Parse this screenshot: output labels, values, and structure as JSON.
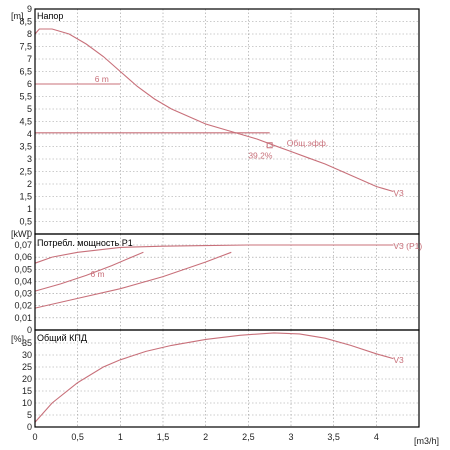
{
  "chart_data": [
    {
      "type": "line",
      "title": "Напор",
      "ylabel_unit": "[m]",
      "ylim": [
        0,
        9
      ],
      "yticks": [
        "0",
        "0,5",
        "1",
        "1,5",
        "2",
        "2,5",
        "3",
        "3,5",
        "4",
        "4,5",
        "5",
        "5,5",
        "6",
        "6,5",
        "7",
        "7,5",
        "8",
        "8,5",
        "9"
      ],
      "xlim": [
        0,
        4.5
      ],
      "grid": true,
      "series": [
        {
          "name": "V3",
          "x": [
            0,
            0.05,
            0.2,
            0.4,
            0.6,
            0.8,
            1.0,
            1.2,
            1.4,
            1.6,
            1.8,
            2.0,
            2.2,
            2.4,
            2.6,
            2.8,
            3.0,
            3.2,
            3.4,
            3.6,
            3.8,
            4.0,
            4.2
          ],
          "y": [
            8.0,
            8.2,
            8.2,
            8.0,
            7.6,
            7.1,
            6.5,
            5.9,
            5.4,
            5.0,
            4.7,
            4.4,
            4.2,
            4.0,
            3.8,
            3.55,
            3.3,
            3.05,
            2.8,
            2.5,
            2.2,
            1.9,
            1.7
          ]
        },
        {
          "name": "6 m",
          "x": [
            0,
            1.0
          ],
          "y": [
            6,
            6
          ]
        },
        {
          "name": "",
          "x": [
            0,
            2.75
          ],
          "y": [
            4.05,
            4.05
          ]
        }
      ],
      "annotations": [
        {
          "text": "6 m",
          "x": 0.7,
          "y": 6.2
        },
        {
          "text": "Общ.эфф.",
          "x": 2.95,
          "y": 3.65
        },
        {
          "text": "39,2%",
          "x": 2.5,
          "y": 3.15
        },
        {
          "text": "V3",
          "x": 4.2,
          "y": 1.65
        }
      ],
      "marker": {
        "x": 2.75,
        "y": 3.55
      }
    },
    {
      "type": "line",
      "title": "Потребл. мощность P1",
      "ylabel_unit": "[kW]",
      "ylim": [
        0,
        0.07
      ],
      "yticks": [
        "0",
        "0,01",
        "0,02",
        "0,03",
        "0,04",
        "0,05",
        "0,06",
        "0,07"
      ],
      "xlim": [
        0,
        4.5
      ],
      "grid": true,
      "series": [
        {
          "name": "V3 (P1)",
          "x": [
            0,
            0.2,
            0.5,
            1.0,
            1.5,
            2.0,
            2.5,
            3.0,
            3.5,
            4.0,
            4.2
          ],
          "y": [
            0.055,
            0.06,
            0.064,
            0.068,
            0.069,
            0.0695,
            0.07,
            0.07,
            0.07,
            0.07,
            0.07
          ]
        },
        {
          "name": "6 m",
          "x": [
            0,
            0.3,
            0.6,
            0.9,
            1.2,
            1.27
          ],
          "y": [
            0.032,
            0.038,
            0.045,
            0.053,
            0.062,
            0.064
          ]
        },
        {
          "name": "",
          "x": [
            0,
            0.5,
            1.0,
            1.5,
            2.0,
            2.3
          ],
          "y": [
            0.018,
            0.026,
            0.034,
            0.044,
            0.056,
            0.064
          ]
        }
      ],
      "annotations": [
        {
          "text": "V3 (P1)",
          "x": 4.2,
          "y": 0.069
        },
        {
          "text": "6 m",
          "x": 0.65,
          "y": 0.046
        }
      ]
    },
    {
      "type": "line",
      "title": "Общий КПД",
      "ylabel_unit": "[%]",
      "ylim": [
        0,
        40
      ],
      "yticks": [
        "0",
        "5",
        "10",
        "15",
        "20",
        "25",
        "30",
        "35"
      ],
      "xlim": [
        0,
        4.5
      ],
      "xticks": [
        "0",
        "0,5",
        "1",
        "1,5",
        "2",
        "2,5",
        "3",
        "3,5",
        "4"
      ],
      "xunit": "[m3/h]",
      "grid": true,
      "series": [
        {
          "name": "V3",
          "x": [
            0,
            0.2,
            0.5,
            0.8,
            1.0,
            1.3,
            1.6,
            2.0,
            2.4,
            2.8,
            3.1,
            3.4,
            3.7,
            4.0,
            4.2
          ],
          "y": [
            2,
            10,
            18.5,
            25,
            28,
            31.5,
            34,
            36.5,
            38.2,
            39.2,
            38.8,
            37,
            34,
            30.5,
            28.5
          ]
        }
      ],
      "annotations": [
        {
          "text": "V3",
          "x": 4.2,
          "y": 28
        }
      ]
    }
  ],
  "colors": {
    "curve": "#c8707a",
    "frame": "#000000",
    "grid": "#9a9a9a",
    "text": "#222222"
  }
}
